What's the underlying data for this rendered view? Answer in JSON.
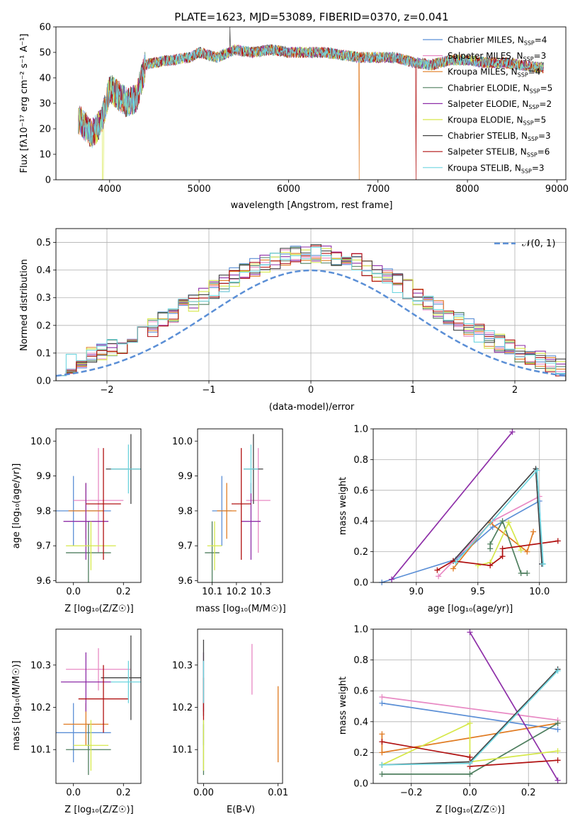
{
  "spectrum": {
    "title": "PLATE=1623, MJD=53089, FIBERID=0370, z=0.041",
    "xlabel": "wavelength [Angstrom, rest frame]",
    "ylabel": "Flux [fλ10⁻¹⁷ erg cm⁻² s⁻¹ A⁻¹]",
    "xlim": [
      3400,
      9100
    ],
    "ylim": [
      0,
      60
    ],
    "xticks": [
      4000,
      5000,
      6000,
      7000,
      8000,
      9000
    ],
    "yticks": [
      0,
      10,
      20,
      30,
      40,
      50,
      60
    ],
    "legend": [
      {
        "label": "Chabrier MILES, N_SSP=4",
        "color": "#5b8fd6"
      },
      {
        "label": "Salpeter MILES, N_SSP=3",
        "color": "#e88ac4"
      },
      {
        "label": "Kroupa MILES, N_SSP=4",
        "color": "#e07b22"
      },
      {
        "label": "Chabrier ELODIE, N_SSP=5",
        "color": "#4f7f5f"
      },
      {
        "label": "Salpeter ELODIE, N_SSP=2",
        "color": "#8e2fa8"
      },
      {
        "label": "Kroupa ELODIE, N_SSP=5",
        "color": "#d6e84a"
      },
      {
        "label": "Chabrier STELIB, N_SSP=3",
        "color": "#444444"
      },
      {
        "label": "Salpeter STELIB, N_SSP=6",
        "color": "#b01010"
      },
      {
        "label": "Kroupa STELIB, N_SSP=3",
        "color": "#6fd6e0"
      }
    ]
  },
  "histogram": {
    "xlabel": "(data-model)/error",
    "ylabel": "Normed distribution",
    "xlim": [
      -2.5,
      2.5
    ],
    "ylim": [
      0,
      0.55
    ],
    "xticks": [
      -2,
      -1,
      0,
      1,
      2
    ],
    "yticks": [
      0.0,
      0.1,
      0.2,
      0.3,
      0.4,
      0.5
    ],
    "legend_label": "𝒩(0, 1)",
    "normal_color": "#5b8fd6"
  },
  "scatter_z_age": {
    "xlabel": "Z [log₁₀(Z/Z☉)]",
    "ylabel": "age  [log₁₀(age/yr)]",
    "xticks": [
      0.0,
      0.2
    ],
    "yticks": [
      9.6,
      9.7,
      9.8,
      9.9,
      10.0
    ]
  },
  "scatter_mass_age": {
    "xlabel": "mass [log₁₀(M/M☉)]",
    "xticks": [
      10.1,
      10.2,
      10.3
    ],
    "yticks": [
      9.6,
      9.7,
      9.8,
      9.9,
      10.0
    ]
  },
  "weight_vs_age": {
    "xlabel": "age  [log₁₀(age/yr)]",
    "ylabel": "mass weight",
    "xticks": [
      9.0,
      9.5,
      10.0
    ],
    "yticks": [
      0.0,
      0.2,
      0.4,
      0.6,
      0.8,
      1.0
    ]
  },
  "scatter_z_mass": {
    "xlabel": "Z [log₁₀(Z/Z☉)]",
    "ylabel": "mass [log₁₀(M/M☉)]",
    "xticks": [
      0.0,
      0.2
    ],
    "yticks": [
      10.1,
      10.2,
      10.3
    ]
  },
  "scatter_ebv_mass": {
    "xlabel": "E(B-V)",
    "xticks": [
      0.0,
      0.01
    ],
    "yticks": [
      10.1,
      10.2,
      10.3
    ]
  },
  "weight_vs_z": {
    "xlabel": "Z [log₁₀(Z/Z☉)]",
    "ylabel": "mass weight",
    "xticks": [
      -0.2,
      0.0,
      0.2
    ],
    "yticks": [
      0.0,
      0.2,
      0.4,
      0.6,
      0.8,
      1.0
    ]
  },
  "chart_data": [
    {
      "type": "line",
      "name": "spectrum",
      "description_free": true,
      "anchors_x": [
        3650,
        3700,
        3800,
        3900,
        3950,
        4000,
        4100,
        4200,
        4300,
        4400,
        4500,
        4700,
        4900,
        5000,
        5200,
        5400,
        5600,
        5800,
        6000,
        6200,
        6400,
        6600,
        6800,
        7000,
        7200,
        7400,
        7600,
        7800,
        8000,
        8200,
        8400,
        8600,
        8800
      ],
      "anchors_y": [
        24,
        22,
        18,
        22,
        28,
        36,
        33,
        30,
        32,
        45,
        46,
        47,
        48,
        50,
        48,
        51,
        50,
        51,
        50,
        50,
        50,
        49,
        48,
        48,
        48,
        46,
        45,
        47,
        47,
        46,
        46,
        45,
        44
      ]
    },
    {
      "type": "bar",
      "name": "residual-histograms",
      "bin_edges_start": -2.5,
      "bin_width": 0.1,
      "normal": {
        "mean": 0,
        "sigma": 1
      }
    },
    {
      "type": "scatter",
      "name": "z-age",
      "series": [
        {
          "color": "#5b8fd6",
          "x": 0.0,
          "y": 9.8,
          "xerr": 0.15,
          "yerr": 0.1
        },
        {
          "color": "#e88ac4",
          "x": 0.1,
          "y": 9.83,
          "xerr": 0.1,
          "yerr": 0.15
        },
        {
          "color": "#e07b22",
          "x": 0.05,
          "y": 9.8,
          "xerr": 0.07,
          "yerr": 0.08
        },
        {
          "color": "#4f7f5f",
          "x": 0.06,
          "y": 9.68,
          "xerr": 0.09,
          "yerr": 0.09
        },
        {
          "color": "#8e2fa8",
          "x": 0.05,
          "y": 9.77,
          "xerr": 0.09,
          "yerr": 0.11
        },
        {
          "color": "#d6e84a",
          "x": 0.07,
          "y": 9.7,
          "xerr": 0.1,
          "yerr": 0.07
        },
        {
          "color": "#444444",
          "x": 0.23,
          "y": 9.92,
          "xerr": 0.1,
          "yerr": 0.1
        },
        {
          "color": "#b01010",
          "x": 0.12,
          "y": 9.82,
          "xerr": 0.07,
          "yerr": 0.16
        },
        {
          "color": "#6fd6e0",
          "x": 0.22,
          "y": 9.92,
          "xerr": 0.07,
          "yerr": 0.07
        }
      ]
    },
    {
      "type": "scatter",
      "name": "mass-age",
      "series": [
        {
          "color": "#5b8fd6",
          "x": 10.14,
          "y": 9.8,
          "xerr": 0.04,
          "yerr": 0.1
        },
        {
          "color": "#e88ac4",
          "x": 10.29,
          "y": 9.83,
          "xerr": 0.05,
          "yerr": 0.15
        },
        {
          "color": "#e07b22",
          "x": 10.16,
          "y": 9.8,
          "xerr": 0.04,
          "yerr": 0.08
        },
        {
          "color": "#4f7f5f",
          "x": 10.1,
          "y": 9.68,
          "xerr": 0.03,
          "yerr": 0.09
        },
        {
          "color": "#8e2fa8",
          "x": 10.26,
          "y": 9.77,
          "xerr": 0.04,
          "yerr": 0.11
        },
        {
          "color": "#d6e84a",
          "x": 10.11,
          "y": 9.7,
          "xerr": 0.03,
          "yerr": 0.07
        },
        {
          "color": "#444444",
          "x": 10.27,
          "y": 9.92,
          "xerr": 0.04,
          "yerr": 0.1
        },
        {
          "color": "#b01010",
          "x": 10.22,
          "y": 9.82,
          "xerr": 0.04,
          "yerr": 0.16
        },
        {
          "color": "#6fd6e0",
          "x": 10.26,
          "y": 9.92,
          "xerr": 0.03,
          "yerr": 0.07
        }
      ]
    },
    {
      "type": "line",
      "name": "weight-age",
      "series": [
        {
          "color": "#5b8fd6",
          "pts": [
            [
              8.72,
              0.0
            ],
            [
              9.32,
              0.15
            ],
            [
              9.62,
              0.36
            ],
            [
              10.0,
              0.53
            ],
            [
              10.02,
              0.12
            ]
          ]
        },
        {
          "color": "#e88ac4",
          "pts": [
            [
              9.18,
              0.04
            ],
            [
              9.62,
              0.4
            ],
            [
              10.0,
              0.56
            ]
          ]
        },
        {
          "color": "#e07b22",
          "pts": [
            [
              9.3,
              0.09
            ],
            [
              9.6,
              0.39
            ],
            [
              9.9,
              0.2
            ],
            [
              9.95,
              0.33
            ]
          ]
        },
        {
          "color": "#4f7f5f",
          "pts": [
            [
              9.6,
              0.22
            ],
            [
              9.6,
              0.25
            ],
            [
              9.7,
              0.4
            ],
            [
              9.85,
              0.06
            ],
            [
              9.9,
              0.06
            ]
          ]
        },
        {
          "color": "#8e2fa8",
          "pts": [
            [
              8.8,
              0.02
            ],
            [
              9.78,
              0.98
            ]
          ]
        },
        {
          "color": "#d6e84a",
          "pts": [
            [
              9.5,
              0.11
            ],
            [
              9.6,
              0.13
            ],
            [
              9.75,
              0.39
            ],
            [
              9.85,
              0.21
            ]
          ]
        },
        {
          "color": "#444444",
          "pts": [
            [
              9.3,
              0.14
            ],
            [
              9.97,
              0.74
            ],
            [
              10.02,
              0.12
            ]
          ]
        },
        {
          "color": "#b01010",
          "pts": [
            [
              9.17,
              0.08
            ],
            [
              9.3,
              0.14
            ],
            [
              9.6,
              0.11
            ],
            [
              9.7,
              0.17
            ],
            [
              9.7,
              0.22
            ],
            [
              10.15,
              0.27
            ]
          ]
        },
        {
          "color": "#6fd6e0",
          "pts": [
            [
              9.32,
              0.13
            ],
            [
              9.98,
              0.73
            ],
            [
              10.03,
              0.12
            ]
          ]
        }
      ]
    },
    {
      "type": "scatter",
      "name": "z-mass",
      "series": [
        {
          "color": "#5b8fd6",
          "x": 0.0,
          "y": 10.14,
          "xerr": 0.15,
          "yerr": 0.07
        },
        {
          "color": "#e88ac4",
          "x": 0.1,
          "y": 10.29,
          "xerr": 0.13,
          "yerr": 0.05
        },
        {
          "color": "#e07b22",
          "x": 0.05,
          "y": 10.16,
          "xerr": 0.09,
          "yerr": 0.05
        },
        {
          "color": "#4f7f5f",
          "x": 0.06,
          "y": 10.1,
          "xerr": 0.09,
          "yerr": 0.06
        },
        {
          "color": "#8e2fa8",
          "x": 0.05,
          "y": 10.26,
          "xerr": 0.1,
          "yerr": 0.07
        },
        {
          "color": "#d6e84a",
          "x": 0.07,
          "y": 10.11,
          "xerr": 0.07,
          "yerr": 0.06
        },
        {
          "color": "#444444",
          "x": 0.23,
          "y": 10.27,
          "xerr": 0.12,
          "yerr": 0.1
        },
        {
          "color": "#b01010",
          "x": 0.12,
          "y": 10.22,
          "xerr": 0.1,
          "yerr": 0.08
        },
        {
          "color": "#6fd6e0",
          "x": 0.22,
          "y": 10.26,
          "xerr": 0.07,
          "yerr": 0.05
        }
      ]
    },
    {
      "type": "scatter",
      "name": "ebv-mass",
      "series": [
        {
          "color": "#5b8fd6",
          "x": 0.0,
          "y": 10.14,
          "yerr": 0.03
        },
        {
          "color": "#e88ac4",
          "x": 0.0065,
          "y": 10.29,
          "yerr": 0.06
        },
        {
          "color": "#e07b22",
          "x": 0.01,
          "y": 10.16,
          "yerr": 0.09
        },
        {
          "color": "#4f7f5f",
          "x": 0.0,
          "y": 10.1,
          "yerr": 0.06
        },
        {
          "color": "#8e2fa8",
          "x": 0.0,
          "y": 10.26,
          "yerr": 0.07
        },
        {
          "color": "#d6e84a",
          "x": 0.0,
          "y": 10.11,
          "yerr": 0.06
        },
        {
          "color": "#444444",
          "x": 0.0,
          "y": 10.27,
          "yerr": 0.09
        },
        {
          "color": "#b01010",
          "x": 0.0,
          "y": 10.22,
          "yerr": 0.05
        },
        {
          "color": "#6fd6e0",
          "x": 0.0,
          "y": 10.26,
          "yerr": 0.05
        }
      ]
    },
    {
      "type": "line",
      "name": "weight-z",
      "series": [
        {
          "color": "#5b8fd6",
          "pts": [
            [
              -0.3,
              0.52
            ],
            [
              0.3,
              0.35
            ]
          ]
        },
        {
          "color": "#e88ac4",
          "pts": [
            [
              -0.3,
              0.56
            ],
            [
              0.3,
              0.41
            ]
          ]
        },
        {
          "color": "#e07b22",
          "pts": [
            [
              -0.3,
              0.32
            ],
            [
              -0.3,
              0.2
            ],
            [
              0.3,
              0.39
            ]
          ]
        },
        {
          "color": "#4f7f5f",
          "pts": [
            [
              -0.3,
              0.06
            ],
            [
              0.0,
              0.06
            ],
            [
              0.3,
              0.39
            ]
          ]
        },
        {
          "color": "#8e2fa8",
          "pts": [
            [
              0.0,
              0.98
            ],
            [
              0.3,
              0.02
            ]
          ]
        },
        {
          "color": "#d6e84a",
          "pts": [
            [
              -0.3,
              0.12
            ],
            [
              0.0,
              0.39
            ],
            [
              0.0,
              0.14
            ],
            [
              0.3,
              0.21
            ]
          ]
        },
        {
          "color": "#444444",
          "pts": [
            [
              -0.3,
              0.12
            ],
            [
              0.0,
              0.14
            ],
            [
              0.3,
              0.74
            ]
          ]
        },
        {
          "color": "#b01010",
          "pts": [
            [
              -0.3,
              0.27
            ],
            [
              0.0,
              0.17
            ],
            [
              0.0,
              0.11
            ],
            [
              0.3,
              0.15
            ]
          ]
        },
        {
          "color": "#6fd6e0",
          "pts": [
            [
              -0.3,
              0.12
            ],
            [
              0.0,
              0.13
            ],
            [
              0.3,
              0.73
            ]
          ]
        }
      ]
    }
  ]
}
